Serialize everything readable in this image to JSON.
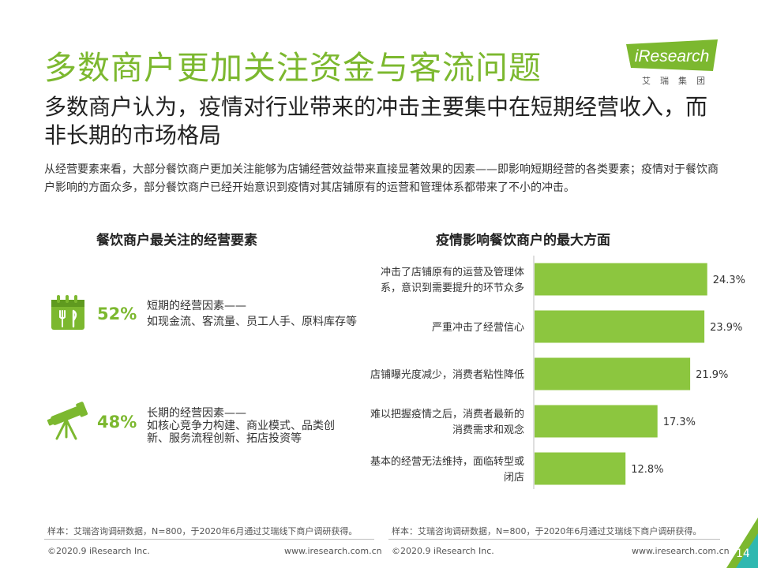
{
  "slide": {
    "title": "多数商户更加关注资金与客流问题",
    "subtitle": "多数商户认为，疫情对行业带来的冲击主要集中在短期经营收入，而非长期的市场格局",
    "body": "从经营要素来看，大部分餐饮商户更加关注能够为店铺经营效益带来直接显著效果的因素——即影响短期经营的各类要素；疫情对于餐饮商户影响的方面众多，部分餐饮商户已经开始意识到疫情对其店铺原有的运营和管理体系都带来了不小的冲击。",
    "brand": {
      "name": "iResearch",
      "tagline": "艾瑞集团",
      "accent": "#7cb82f"
    }
  },
  "left_panel": {
    "heading": "餐饮商户最关注的经营要素",
    "factors": [
      {
        "icon": "calendar-dining-icon",
        "percent": "52%",
        "title": "短期的经营因素——",
        "desc": [
          "如现金流、客流量、员工人手、原料库存等"
        ]
      },
      {
        "icon": "telescope-icon",
        "percent": "48%",
        "title": "长期的经营因素——",
        "desc": [
          "如核心竞争力构建、商业模式、品类创",
          "新、服务流程创新、拓店投资等"
        ]
      }
    ]
  },
  "chart_data": {
    "type": "bar",
    "orientation": "horizontal",
    "title": "疫情影响餐饮商户的最大方面",
    "categories": [
      [
        "冲击了店铺原有的运营及管理体",
        "系，意识到需要提升的环节众多"
      ],
      [
        "严重冲击了经营信心"
      ],
      [
        "店铺曝光度减少，消费者粘性降低"
      ],
      [
        "难以把握疫情之后，消费者最新的",
        "消费需求和观念"
      ],
      [
        "基本的经营无法维持，面临转型或",
        "闭店"
      ]
    ],
    "values": [
      24.3,
      23.9,
      21.9,
      17.3,
      12.8
    ],
    "value_labels": [
      "24.3%",
      "23.9%",
      "21.9%",
      "17.3%",
      "12.8%"
    ],
    "xlim": [
      0,
      25
    ],
    "grid": false,
    "bar_color": "#8cc63f"
  },
  "notes": {
    "left": "样本：艾瑞咨询调研数据，N=800，于2020年6月通过艾瑞线下商户调研获得。",
    "right": "样本：艾瑞咨询调研数据，N=800，于2020年6月通过艾瑞线下商户调研获得。"
  },
  "footer": {
    "copyright_left": "©2020.9 iResearch Inc.",
    "url_left": "www.iresearch.com.cn",
    "copyright_right": "©2020.9 iResearch Inc.",
    "url_right": "www.iresearch.com.cn",
    "page_number": "14"
  }
}
